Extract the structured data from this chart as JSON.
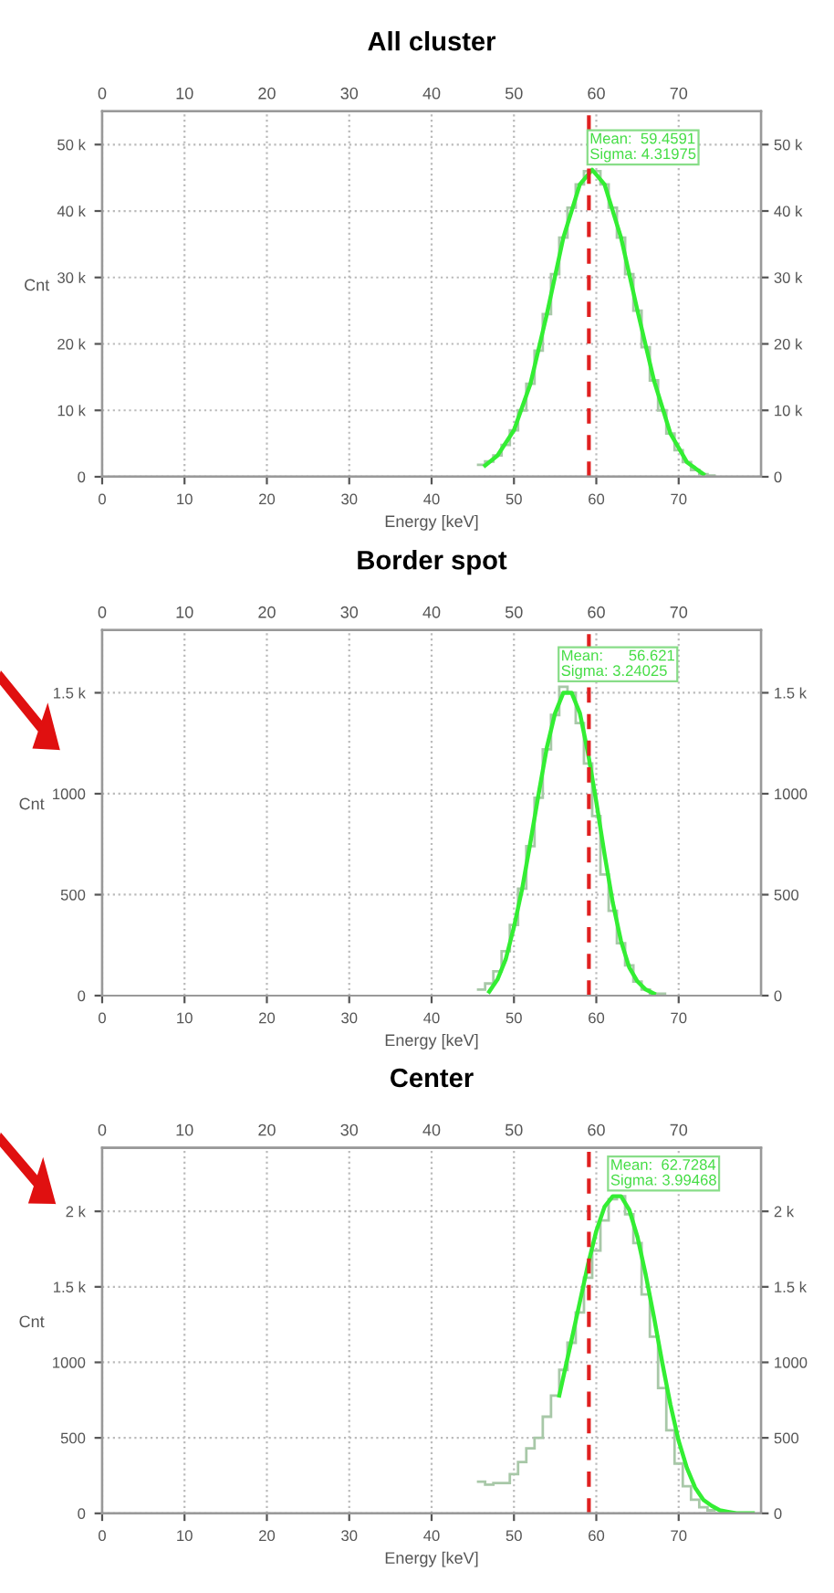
{
  "chart_data": [
    {
      "type": "histogram",
      "title": "All cluster",
      "xlabel": "Energy [keV]",
      "ylabel": "Cnt",
      "series": [
        {
          "color": "#a8c8a8",
          "bins": [
            45.5,
            46.5,
            47.5,
            48.5,
            49.5,
            50.5,
            51.5,
            52.5,
            53.5,
            54.5,
            55.5,
            56.5,
            57.5,
            58.5,
            59.5,
            60.5,
            61.5,
            62.5,
            63.5,
            64.5,
            65.5,
            66.5,
            67.5,
            68.5,
            69.5,
            70.5,
            71.5,
            72.5,
            73.5,
            74.5
          ],
          "values": [
            1800,
            2300,
            3200,
            4800,
            7000,
            10000,
            14000,
            19000,
            24500,
            30500,
            36000,
            40500,
            44000,
            46000,
            46000,
            44000,
            40500,
            36000,
            30500,
            25000,
            19500,
            14500,
            10000,
            6500,
            4000,
            2200,
            1000,
            400,
            200
          ]
        },
        {
          "type": "line",
          "color": "#33ee33",
          "x": [
            46.5,
            48,
            50,
            52,
            54,
            56,
            58,
            59.5,
            61,
            63,
            65,
            67,
            69,
            71,
            73
          ],
          "values": [
            1700,
            3200,
            7000,
            14000,
            24500,
            36000,
            44000,
            46200,
            44000,
            36000,
            25000,
            14500,
            6500,
            2200,
            400
          ]
        }
      ],
      "xlim": [
        0,
        80
      ],
      "xticks": [
        0,
        10,
        20,
        30,
        40,
        50,
        60,
        70
      ],
      "x2lim": [
        0,
        80
      ],
      "x2ticks": [
        0,
        10,
        20,
        30,
        40,
        50,
        60,
        70
      ],
      "ylim": [
        0,
        55000
      ],
      "yticks": [
        0,
        {
          "value": 10000,
          "label": "10 k"
        },
        {
          "value": 20000,
          "label": "20 k"
        },
        {
          "value": 30000,
          "label": "30 k"
        },
        {
          "value": 40000,
          "label": "40 k"
        },
        {
          "value": 50000,
          "label": "50 k"
        }
      ],
      "y2lim": [
        0,
        55000
      ],
      "y2ticks": [
        0,
        {
          "value": 10000,
          "label": "10 k"
        },
        {
          "value": 20000,
          "label": "20 k"
        },
        {
          "value": 30000,
          "label": "30 k"
        },
        {
          "value": 40000,
          "label": "40 k"
        },
        {
          "value": 50000,
          "label": "50 k"
        }
      ],
      "annotations": [
        "Mean:  59.4591",
        "Sigma: 4.31975"
      ],
      "ref_lines": [
        {
          "axis": "x",
          "value": 59.1,
          "color": "#e02020",
          "line_style": "dashed"
        }
      ],
      "grid": true
    },
    {
      "type": "histogram",
      "title": "Border spot",
      "xlabel": "Energy [keV]",
      "ylabel": "Cnt",
      "series": [
        {
          "color": "#a8c8a8",
          "bins": [
            45.5,
            46.5,
            47.5,
            48.5,
            49.5,
            50.5,
            51.5,
            52.5,
            53.5,
            54.5,
            55.5,
            56.5,
            57.5,
            58.5,
            59.5,
            60.5,
            61.5,
            62.5,
            63.5,
            64.5,
            65.5,
            66.5,
            67.5,
            68.5
          ],
          "values": [
            30,
            60,
            120,
            220,
            350,
            530,
            740,
            980,
            1220,
            1390,
            1530,
            1500,
            1350,
            1150,
            890,
            600,
            420,
            260,
            150,
            70,
            30,
            10,
            10
          ]
        },
        {
          "type": "line",
          "color": "#33ee33",
          "x": [
            47,
            48,
            49,
            50,
            51,
            52,
            53,
            54,
            55,
            56,
            57,
            58,
            59,
            60,
            61,
            62,
            63,
            64,
            65,
            66,
            67
          ],
          "values": [
            20,
            80,
            180,
            340,
            530,
            760,
            1000,
            1230,
            1400,
            1500,
            1500,
            1400,
            1200,
            960,
            700,
            460,
            270,
            140,
            70,
            30,
            10
          ]
        }
      ],
      "xlim": [
        0,
        80
      ],
      "xticks": [
        0,
        10,
        20,
        30,
        40,
        50,
        60,
        70
      ],
      "x2lim": [
        0,
        80
      ],
      "x2ticks": [
        0,
        10,
        20,
        30,
        40,
        50,
        60,
        70
      ],
      "ylim": [
        0,
        1810
      ],
      "yticks": [
        0,
        500,
        1000,
        {
          "value": 1500,
          "label": "1.5 k"
        }
      ],
      "y2lim": [
        0,
        1810
      ],
      "y2ticks": [
        0,
        500,
        1000,
        {
          "value": 1500,
          "label": "1.5 k"
        }
      ],
      "annotations": [
        "Mean:      56.621",
        "Sigma: 3.24025"
      ],
      "ref_lines": [
        {
          "axis": "x",
          "value": 59.1,
          "color": "#e02020",
          "line_style": "dashed"
        }
      ],
      "grid": true
    },
    {
      "type": "histogram",
      "title": "Center",
      "xlabel": "Energy [keV]",
      "ylabel": "Cnt",
      "series": [
        {
          "color": "#a8c8a8",
          "bins": [
            45.5,
            46.5,
            47.5,
            48.5,
            49.5,
            50.5,
            51.5,
            52.5,
            53.5,
            54.5,
            55.5,
            56.5,
            57.5,
            58.5,
            59.5,
            60.5,
            61.5,
            62.5,
            63.5,
            64.5,
            65.5,
            66.5,
            67.5,
            68.5,
            69.5,
            70.5,
            71.5,
            72.5,
            73.5,
            74.5
          ],
          "values": [
            210,
            190,
            200,
            200,
            260,
            340,
            430,
            500,
            640,
            780,
            950,
            1130,
            1330,
            1560,
            1740,
            1940,
            2080,
            2100,
            1980,
            1790,
            1450,
            1170,
            830,
            550,
            330,
            180,
            90,
            40,
            20
          ]
        },
        {
          "type": "line",
          "color": "#33ee33",
          "x": [
            55.5,
            57,
            58,
            59,
            60,
            61,
            62,
            63,
            64,
            65,
            66,
            67,
            68,
            69,
            70,
            71,
            72,
            73,
            74,
            75,
            76,
            77,
            78,
            79
          ],
          "values": [
            780,
            1150,
            1400,
            1650,
            1870,
            2030,
            2100,
            2100,
            2010,
            1830,
            1580,
            1300,
            1000,
            720,
            480,
            300,
            170,
            90,
            50,
            20,
            10,
            0,
            0,
            0
          ]
        }
      ],
      "xlim": [
        0,
        80
      ],
      "xticks": [
        0,
        10,
        20,
        30,
        40,
        50,
        60,
        70
      ],
      "x2lim": [
        0,
        80
      ],
      "x2ticks": [
        0,
        10,
        20,
        30,
        40,
        50,
        60,
        70
      ],
      "ylim": [
        0,
        2420
      ],
      "yticks": [
        0,
        500,
        1000,
        {
          "value": 1500,
          "label": "1.5 k"
        },
        {
          "value": 2000,
          "label": "2 k"
        }
      ],
      "y2lim": [
        0,
        2420
      ],
      "y2ticks": [
        0,
        500,
        1000,
        {
          "value": 1500,
          "label": "1.5 k"
        },
        {
          "value": 2000,
          "label": "2 k"
        }
      ],
      "annotations": [
        "Mean:  62.7284",
        "Sigma: 3.99468"
      ],
      "ref_lines": [
        {
          "axis": "x",
          "value": 59.1,
          "color": "#e02020",
          "line_style": "dashed"
        }
      ],
      "grid": true
    }
  ]
}
